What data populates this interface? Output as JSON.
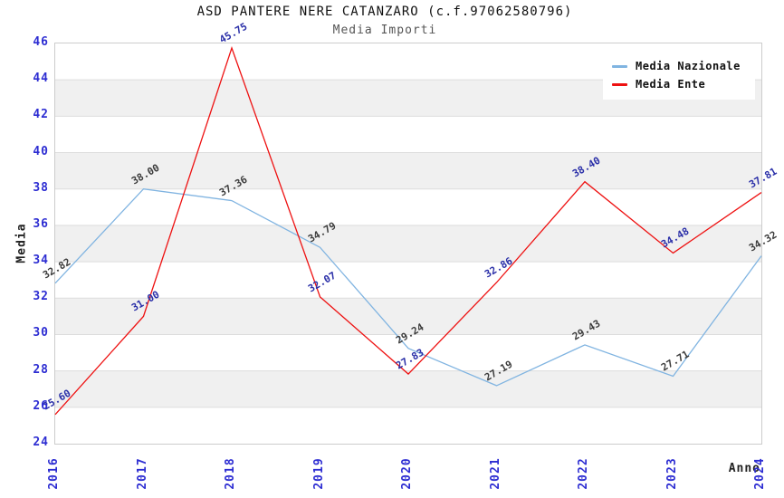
{
  "header": {
    "title": "ASD PANTERE NERE CATANZARO (c.f.97062580796)",
    "subtitle": "Media Importi"
  },
  "chart_data": {
    "type": "line",
    "title": "ASD PANTERE NERE CATANZARO (c.f.97062580796)",
    "subtitle": "Media Importi",
    "xlabel": "Anno",
    "ylabel": "Media",
    "categories": [
      "2016",
      "2017",
      "2018",
      "2019",
      "2020",
      "2021",
      "2022",
      "2023",
      "2024"
    ],
    "series": [
      {
        "name": "Media Nazionale",
        "color": "#80b4e1",
        "label_color": "#3c3c3c",
        "values": [
          32.82,
          38.0,
          37.36,
          34.79,
          29.24,
          27.19,
          29.43,
          27.71,
          34.32
        ]
      },
      {
        "name": "Media Ente",
        "color": "#ee1111",
        "label_color": "#2a2fa8",
        "values": [
          25.6,
          31.0,
          45.75,
          32.07,
          27.83,
          32.86,
          38.4,
          34.48,
          37.81
        ]
      }
    ],
    "ylim": [
      24,
      46
    ],
    "ystep": 2,
    "grid": "horizontal-bands",
    "band_colors": [
      "#ffffff",
      "#f0f0f0"
    ],
    "gridline_color": "#dddddd",
    "tick_color": "#2d2dd2",
    "legend_position": "top-right"
  }
}
